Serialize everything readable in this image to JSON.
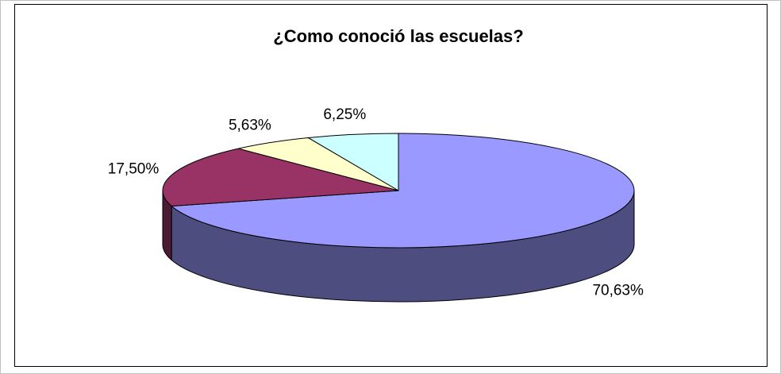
{
  "chart_data": {
    "type": "pie",
    "title": "¿Como conoció las escuelas?",
    "values": [
      70.63,
      17.5,
      5.63,
      6.25
    ],
    "value_labels": [
      "70,63%",
      "17,50%",
      "5,63%",
      "6,25%"
    ],
    "colors": [
      "#9999ff",
      "#993366",
      "#ffffcc",
      "#ccffff"
    ],
    "three_d": true
  }
}
